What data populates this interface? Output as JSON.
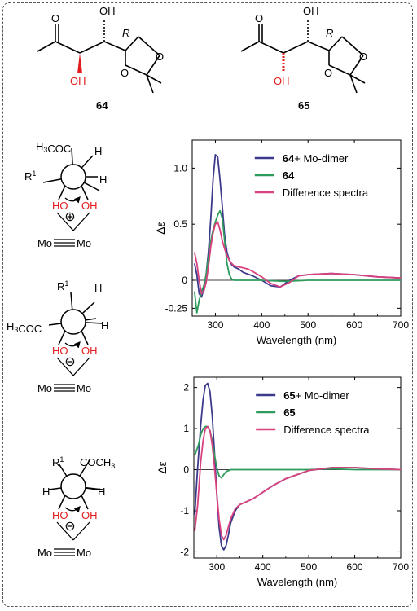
{
  "compounds": [
    {
      "id": "64",
      "oh_top": "OH",
      "oh_red": "OH",
      "stereo": "R",
      "o_ring_1": "O",
      "o_ring_2": "O",
      "o_ring_3": "O"
    },
    {
      "id": "65",
      "oh_top": "OH",
      "oh_red": "OH",
      "stereo": "R",
      "o_ring_1": "O",
      "o_ring_2": "O",
      "o_ring_3": "O"
    }
  ],
  "newman": [
    {
      "top_left": "H3COC",
      "left": "R1",
      "top_right": "H",
      "right": "H",
      "ho": "HO",
      "oh": "OH",
      "charge": "⊕",
      "metal": "Mo",
      "metal2": "Mo"
    },
    {
      "top_left": "R1",
      "left": "H3COC",
      "top_right": "H",
      "right": "H",
      "ho": "HO",
      "oh": "OH",
      "charge": "⊖",
      "metal": "Mo",
      "metal2": "Mo"
    },
    {
      "top_left": "R1",
      "left": "H",
      "top_right": "COCH3",
      "right": "H",
      "ho": "HO",
      "oh": "OH",
      "charge": "⊖",
      "metal": "Mo",
      "metal2": "Mo"
    }
  ],
  "chart_data": [
    {
      "type": "line",
      "xlabel": "Wavelength (nm)",
      "ylabel": "Δε",
      "xlim": [
        250,
        700
      ],
      "ylim": [
        -0.32,
        1.25
      ],
      "xticks": [
        300,
        400,
        500,
        600,
        700
      ],
      "yticks": [
        -0.25,
        0,
        0.5,
        1.0
      ],
      "ytick_labels": [
        "-0.25",
        "0",
        "0.5",
        "1.0"
      ],
      "legend_placement": "top-right",
      "series": [
        {
          "name_bold": "64",
          "name": "+ Mo-dimer",
          "color": "#3d3a8c",
          "x": [
            255,
            260,
            265,
            270,
            275,
            280,
            285,
            290,
            295,
            300,
            305,
            310,
            315,
            320,
            325,
            330,
            335,
            340,
            350,
            360,
            380,
            400,
            420,
            440,
            460,
            480,
            500,
            550,
            600,
            650,
            700
          ],
          "y": [
            0.15,
            0.05,
            -0.12,
            -0.15,
            -0.08,
            0.05,
            0.25,
            0.55,
            0.9,
            1.12,
            1.1,
            0.9,
            0.65,
            0.4,
            0.25,
            0.18,
            0.14,
            0.12,
            0.1,
            0.07,
            0.04,
            0.0,
            -0.05,
            -0.06,
            0.0,
            0.04,
            0.05,
            0.06,
            0.05,
            0.03,
            0.02
          ]
        },
        {
          "name_bold": "64",
          "name": "",
          "color": "#2e9a5c",
          "x": [
            255,
            260,
            265,
            270,
            275,
            280,
            285,
            290,
            295,
            300,
            305,
            310,
            315,
            320,
            325,
            330,
            335,
            340,
            350,
            400,
            450,
            500,
            550,
            600,
            650,
            700
          ],
          "y": [
            -0.1,
            -0.29,
            -0.18,
            -0.1,
            -0.05,
            0.05,
            0.2,
            0.35,
            0.45,
            0.52,
            0.58,
            0.62,
            0.55,
            0.35,
            0.15,
            0.05,
            0.01,
            0.0,
            0.0,
            0.0,
            -0.01,
            0.0,
            0.0,
            0.0,
            0.0,
            0.0
          ]
        },
        {
          "name_bold": "",
          "name": "Difference spectra",
          "color": "#d9417f",
          "x": [
            255,
            260,
            265,
            270,
            275,
            280,
            285,
            290,
            295,
            300,
            305,
            310,
            315,
            320,
            325,
            330,
            335,
            340,
            350,
            360,
            370,
            380,
            400,
            420,
            440,
            460,
            480,
            500,
            550,
            600,
            650,
            700
          ],
          "y": [
            0.25,
            0.15,
            0.0,
            -0.12,
            -0.1,
            -0.02,
            0.12,
            0.3,
            0.42,
            0.5,
            0.52,
            0.45,
            0.35,
            0.28,
            0.22,
            0.18,
            0.15,
            0.13,
            0.12,
            0.11,
            0.1,
            0.08,
            0.03,
            -0.03,
            -0.06,
            -0.02,
            0.04,
            0.05,
            0.06,
            0.05,
            0.03,
            0.02
          ]
        }
      ]
    },
    {
      "type": "line",
      "xlabel": "Wavelength (nm)",
      "ylabel": "Δε",
      "xlim": [
        250,
        700
      ],
      "ylim": [
        -2.15,
        2.25
      ],
      "xticks": [
        300,
        400,
        500,
        600,
        700
      ],
      "yticks": [
        -2,
        -1,
        0,
        1,
        2
      ],
      "ytick_labels": [
        "-2",
        "-1",
        "0",
        "1",
        "2"
      ],
      "legend_placement": "top-right",
      "series": [
        {
          "name_bold": "65",
          "name": "+ Mo-dimer",
          "color": "#3d3a8c",
          "x": [
            252,
            258,
            265,
            270,
            275,
            280,
            285,
            290,
            295,
            300,
            305,
            310,
            315,
            320,
            325,
            330,
            340,
            350,
            360,
            370,
            380,
            400,
            420,
            450,
            500,
            550,
            600,
            650,
            700
          ],
          "y": [
            -1.1,
            0.0,
            1.1,
            1.7,
            2.05,
            2.1,
            1.9,
            1.3,
            0.4,
            -0.6,
            -1.4,
            -1.85,
            -1.95,
            -1.85,
            -1.6,
            -1.3,
            -1.0,
            -0.85,
            -0.8,
            -0.75,
            -0.7,
            -0.55,
            -0.4,
            -0.22,
            -0.02,
            0.05,
            0.05,
            0.02,
            0.0
          ]
        },
        {
          "name_bold": "65",
          "name": "",
          "color": "#2e9a5c",
          "x": [
            252,
            260,
            265,
            270,
            275,
            280,
            285,
            290,
            295,
            300,
            305,
            310,
            315,
            320,
            330,
            340,
            350,
            400,
            450,
            500,
            550,
            600,
            650,
            700
          ],
          "y": [
            0.35,
            0.6,
            0.85,
            1.0,
            1.05,
            1.05,
            0.95,
            0.7,
            0.35,
            0.05,
            -0.15,
            -0.2,
            -0.12,
            -0.05,
            0.0,
            0.0,
            0.0,
            0.0,
            0.0,
            0.0,
            0.02,
            0.0,
            0.0,
            0.0
          ]
        },
        {
          "name_bold": "",
          "name": "Difference spectra",
          "color": "#d9417f",
          "x": [
            252,
            258,
            265,
            270,
            275,
            280,
            285,
            290,
            295,
            300,
            305,
            310,
            315,
            320,
            325,
            330,
            340,
            350,
            360,
            370,
            380,
            400,
            420,
            450,
            500,
            550,
            600,
            650,
            700
          ],
          "y": [
            -1.5,
            -0.9,
            0.2,
            0.7,
            1.0,
            1.05,
            0.95,
            0.6,
            0.05,
            -0.6,
            -1.2,
            -1.6,
            -1.7,
            -1.6,
            -1.4,
            -1.2,
            -0.95,
            -0.85,
            -0.8,
            -0.75,
            -0.7,
            -0.55,
            -0.4,
            -0.22,
            -0.02,
            0.05,
            0.05,
            0.02,
            0.0
          ]
        }
      ]
    }
  ]
}
